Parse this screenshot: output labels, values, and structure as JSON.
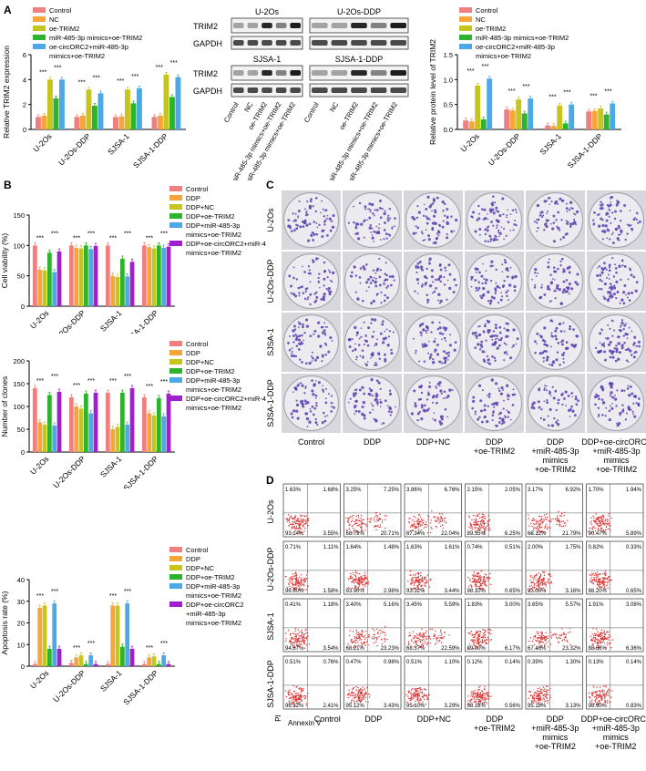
{
  "panels": {
    "A": "A",
    "B": "B",
    "C": "C",
    "D": "D"
  },
  "groups_A": [
    "Control",
    "NC",
    "oe-TRIM2",
    "miR-485-3p mimics+oe-TRIM2",
    "oe-circORC2+miR-485-3p mimics+oe-TRIM2"
  ],
  "groups_A_legend": [
    "Control",
    "NC",
    "oe-TRIM2",
    "miR-485-3p mimics+oe-TRIM2",
    "oe-circORC2+miR-485-3p",
    "mimics+oe-TRIM2"
  ],
  "groups_B_legend": [
    "Control",
    "DDP",
    "DDP+NC",
    "DDP+oe-TRIM2",
    "DDP+miR-485-3p",
    "mimics+oe-TRIM2",
    "DDP+oe-circORC2+miR-485-3p",
    "mimics+oe-TRIM2"
  ],
  "groups_B3_legend": [
    "Control",
    "DDP",
    "DDP+NC",
    "DDP+oe-TRIM2",
    "DDP+miR-485-3p",
    "mimics+oe-TRIM2",
    "DDP+oe-circORC2",
    "+miR-485-3p",
    "mimics+oe-TRIM2"
  ],
  "colors_A": [
    "#f08080",
    "#f4a63c",
    "#c8c41e",
    "#2db32d",
    "#4da8e8"
  ],
  "colors_B": [
    "#f08080",
    "#f4a63c",
    "#c8c41e",
    "#2db32d",
    "#4da8e8",
    "#a020d0"
  ],
  "cell_lines": [
    "U-2Os",
    "U-2Os-DDP",
    "SJSA-1",
    "SJSA-1-DDP"
  ],
  "sig3": "***",
  "sig2": "**",
  "sig1": "*",
  "chart_data": [
    {
      "type": "bar",
      "ylabel": "Relative TRIM2 expression",
      "ylim": [
        0,
        6
      ],
      "yticks": [
        "0",
        "2",
        "4",
        "6"
      ],
      "categories": [
        "U-2Os",
        "U-2Os-DDP",
        "SJSA-1",
        "SJSA-1-DDP"
      ],
      "series": [
        {
          "name": "Control",
          "values": [
            1.0,
            1.0,
            1.0,
            1.0
          ]
        },
        {
          "name": "NC",
          "values": [
            1.1,
            1.1,
            1.05,
            1.1
          ]
        },
        {
          "name": "oe-TRIM2",
          "values": [
            4.0,
            3.2,
            3.2,
            4.4
          ]
        },
        {
          "name": "miR-485-3p mimics+oe-TRIM2",
          "values": [
            2.5,
            1.9,
            2.1,
            2.6
          ]
        },
        {
          "name": "oe-circORC2+miR-485-3p mimics+oe-TRIM2",
          "values": [
            4.0,
            2.9,
            3.3,
            4.2
          ]
        }
      ]
    },
    {
      "type": "bar",
      "ylabel": "Relative protein level of TRIM2",
      "ylim": [
        0,
        1.5
      ],
      "yticks": [
        "0.0",
        "0.5",
        "1.0",
        "1.5"
      ],
      "categories": [
        "U-2Os",
        "U-2Os-DDP",
        "SJSA-1",
        "SJSA-1-DDP"
      ],
      "series": [
        {
          "name": "Control",
          "values": [
            0.18,
            0.4,
            0.08,
            0.36
          ]
        },
        {
          "name": "NC",
          "values": [
            0.16,
            0.38,
            0.07,
            0.37
          ]
        },
        {
          "name": "oe-TRIM2",
          "values": [
            0.88,
            0.6,
            0.48,
            0.42
          ]
        },
        {
          "name": "miR-485-3p mimics+oe-TRIM2",
          "values": [
            0.2,
            0.32,
            0.12,
            0.3
          ]
        },
        {
          "name": "oe-circORC2+miR-485-3p mimics+oe-TRIM2",
          "values": [
            1.02,
            0.62,
            0.5,
            0.52
          ]
        }
      ]
    },
    {
      "type": "bar",
      "ylabel": "Cell viability (%)",
      "ylim": [
        0,
        150
      ],
      "yticks": [
        "0",
        "50",
        "100",
        "150"
      ],
      "categories": [
        "U-2Os",
        "U-2Os-DDP",
        "SJSA-1",
        "SJSA-1-DDP"
      ],
      "series": [
        {
          "name": "Control",
          "values": [
            100,
            100,
            100,
            100
          ]
        },
        {
          "name": "DDP",
          "values": [
            60,
            96,
            50,
            97
          ]
        },
        {
          "name": "DDP+NC",
          "values": [
            59,
            95,
            48,
            95
          ]
        },
        {
          "name": "DDP+oe-TRIM2",
          "values": [
            88,
            100,
            78,
            100
          ]
        },
        {
          "name": "DDP+miR-485-3p mimics+oe-TRIM2",
          "values": [
            56,
            94,
            49,
            96
          ]
        },
        {
          "name": "DDP+oe-circORC2+miR-485-3p mimics+oe-TRIM2",
          "values": [
            90,
            99,
            73,
            98
          ]
        }
      ]
    },
    {
      "type": "bar",
      "ylabel": "Number of clones",
      "ylim": [
        0,
        200
      ],
      "yticks": [
        "0",
        "50",
        "100",
        "150",
        "200"
      ],
      "categories": [
        "U-2Os",
        "U-2Os-DDP",
        "SJSA-1",
        "SJSA-1-DDP"
      ],
      "series": [
        {
          "name": "Control",
          "values": [
            140,
            120,
            130,
            120
          ]
        },
        {
          "name": "DDP",
          "values": [
            65,
            100,
            50,
            85
          ]
        },
        {
          "name": "DDP+NC",
          "values": [
            60,
            95,
            55,
            80
          ]
        },
        {
          "name": "DDP+oe-TRIM2",
          "values": [
            125,
            128,
            130,
            118
          ]
        },
        {
          "name": "DDP+miR-485-3p mimics+oe-TRIM2",
          "values": [
            58,
            85,
            60,
            78
          ]
        },
        {
          "name": "DDP+oe-circORC2+miR-485-3p mimics+oe-TRIM2",
          "values": [
            132,
            130,
            140,
            128
          ]
        }
      ]
    },
    {
      "type": "bar",
      "ylabel": "Apoptosis rate (%)",
      "ylim": [
        0,
        40
      ],
      "yticks": [
        "0",
        "10",
        "20",
        "30",
        "40"
      ],
      "categories": [
        "U-2Os",
        "U-2Os-DDP",
        "SJSA-1",
        "SJSA-1-DDP"
      ],
      "series": [
        {
          "name": "Control",
          "values": [
            1.0,
            1.5,
            1.0,
            1.0
          ]
        },
        {
          "name": "DDP",
          "values": [
            27,
            4,
            28,
            4
          ]
        },
        {
          "name": "DDP+NC",
          "values": [
            28,
            5,
            28,
            4.5
          ]
        },
        {
          "name": "DDP+oe-TRIM2",
          "values": [
            8,
            1,
            9,
            1
          ]
        },
        {
          "name": "DDP+miR-485-3p mimics+oe-TRIM2",
          "values": [
            29,
            5,
            29,
            5
          ]
        },
        {
          "name": "DDP+oe-circORC2+miR-485-3p mimics+oe-TRIM2",
          "values": [
            8,
            1,
            8,
            1
          ]
        }
      ]
    }
  ],
  "western": {
    "labels_top": [
      "U-2Os",
      "U-2Os-DDP"
    ],
    "labels_bottom": [
      "SJSA-1",
      "SJSA-1-DDP"
    ],
    "rows": [
      "TRIM2",
      "GAPDH",
      "TRIM2",
      "GAPDH"
    ],
    "lanes": [
      "Control",
      "NC",
      "oe-TRIM2",
      "miR-485-3p mimics+oe-TRIM2",
      "oe-circORC2+miR-485-3p mimics+oe-TRIM2",
      "Control",
      "NC",
      "oe-TRIM2",
      "miR-485-3p mimics+oe-TRIM2",
      "oe-circORC2+miR-485-3p mimics+oe-TRIM2"
    ]
  },
  "colony": {
    "rows": [
      "U-2Os",
      "U-2Os-DDP",
      "SJSA-1",
      "SJSA-1-DDP"
    ],
    "cols": [
      "Control",
      "DDP",
      "DDP+NC",
      "DDP\n+oe-TRIM2",
      "DDP\n+miR-485-3p\nmimics\n+oe-TRIM2",
      "DDP+oe-circORC2\n+miR-485-3p\nmimics\n+oe-TRIM2"
    ]
  },
  "flow": {
    "rows": [
      "U-2Os",
      "U-2Os-DDP",
      "SJSA-1",
      "SJSA-1-DDP"
    ],
    "cols": [
      "Control",
      "DDP",
      "DDP+NC",
      "DDP\n+oe-TRIM2",
      "DDP\n+miR-485-3p\nmimics\n+oe-TRIM2",
      "DDP+oe-circORC2\n+miR-485-3p\nmimics\n+oe-TRIM2"
    ],
    "x_axis": "Annexin V",
    "y_axis": "PI",
    "quadrants": [
      [
        [
          "1.63%",
          "1.68%",
          "93.14%",
          "3.55%"
        ],
        [
          "3.25%",
          "7.25%",
          "68.79%",
          "20.71%"
        ],
        [
          "3.86%",
          "6.76%",
          "67.34%",
          "22.04%"
        ],
        [
          "2.15%",
          "2.05%",
          "89.55%",
          "6.25%"
        ],
        [
          "3.17%",
          "6.92%",
          "68.12%",
          "21.79%"
        ],
        [
          "1.70%",
          "1.94%",
          "90.47%",
          "5.89%"
        ]
      ],
      [
        [
          "0.71%",
          "1.11%",
          "96.60%",
          "1.58%"
        ],
        [
          "1.64%",
          "1.48%",
          "93.90%",
          "2.98%"
        ],
        [
          "1.63%",
          "1.61%",
          "93.32%",
          "3.44%"
        ],
        [
          "0.74%",
          "0.51%",
          "98.10%",
          "0.65%"
        ],
        [
          "2.00%",
          "1.75%",
          "93.09%",
          "3.16%"
        ],
        [
          "0.82%",
          "0.33%",
          "98.20%",
          "0.65%"
        ]
      ],
      [
        [
          "0.41%",
          "1.18%",
          "94.87%",
          "3.54%"
        ],
        [
          "3.40%",
          "5.16%",
          "68.21%",
          "23.23%"
        ],
        [
          "3.45%",
          "5.59%",
          "68.37%",
          "22.59%"
        ],
        [
          "1.83%",
          "3.00%",
          "89.00%",
          "6.17%"
        ],
        [
          "3.65%",
          "5.57%",
          "67.46%",
          "23.32%"
        ],
        [
          "1.91%",
          "3.08%",
          "88.68%",
          "6.36%"
        ]
      ],
      [
        [
          "0.51%",
          "0.76%",
          "96.32%",
          "2.41%"
        ],
        [
          "0.47%",
          "0.98%",
          "95.12%",
          "3.43%"
        ],
        [
          "0.51%",
          "1.10%",
          "95.10%",
          "3.29%"
        ],
        [
          "0.12%",
          "0.14%",
          "98.18%",
          "0.56%"
        ],
        [
          "0.39%",
          "1.30%",
          "95.18%",
          "3.13%"
        ],
        [
          "0.13%",
          "0.14%",
          "98.90%",
          "0.83%"
        ]
      ]
    ]
  }
}
